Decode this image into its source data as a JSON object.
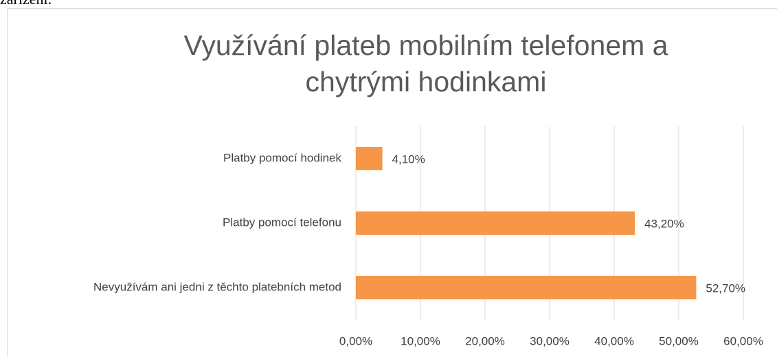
{
  "above_text": "zařízení.",
  "chart_data": {
    "type": "barh",
    "title": "Využívání plateb mobilním telefonem a chytrými hodinkami",
    "categories": [
      "Platby pomocí hodinek",
      "Platby pomocí telefonu",
      "Nevyužívám ani jedni z těchto platebních metod"
    ],
    "values": [
      4.1,
      43.2,
      52.7
    ],
    "value_labels": [
      "4,10%",
      "43,20%",
      "52,70%"
    ],
    "color": "#f79646",
    "xlim": [
      0,
      60
    ],
    "xticks": [
      {
        "value": 0,
        "label": "0,00%"
      },
      {
        "value": 10,
        "label": "10,00%"
      },
      {
        "value": 20,
        "label": "20,00%"
      },
      {
        "value": 30,
        "label": "30,00%"
      },
      {
        "value": 40,
        "label": "40,00%"
      },
      {
        "value": 50,
        "label": "50,00%"
      },
      {
        "value": 60,
        "label": "60,00%"
      }
    ],
    "grid": true
  }
}
